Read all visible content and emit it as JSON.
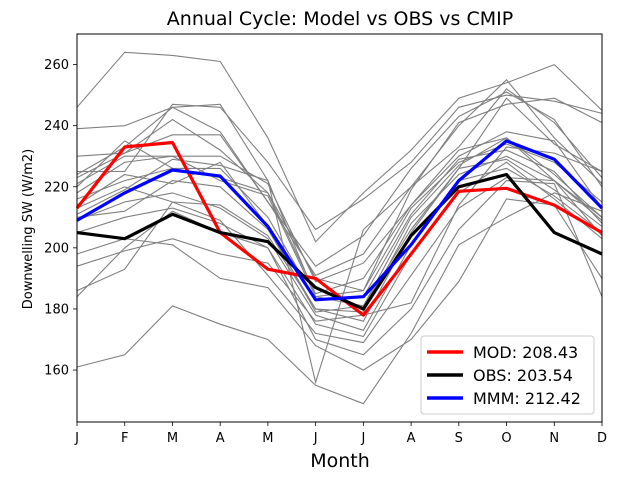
{
  "chart_data": {
    "type": "line",
    "title": "Annual Cycle: Model vs OBS vs CMIP",
    "xlabel": "Month",
    "ylabel": "Downwelling SW (W/m2)",
    "categories": [
      "J",
      "F",
      "M",
      "A",
      "M",
      "J",
      "J",
      "A",
      "S",
      "O",
      "N",
      "D"
    ],
    "ylim": [
      143,
      270
    ],
    "yticks": [
      160,
      180,
      200,
      220,
      240,
      260
    ],
    "legend_position": "lower-right",
    "series": [
      {
        "name": "MOD",
        "label": "MOD: 208.43",
        "color": "#ff0000",
        "values": [
          213,
          233,
          234.5,
          205,
          193,
          190,
          178,
          198,
          218.5,
          219.5,
          214,
          205
        ]
      },
      {
        "name": "OBS",
        "label": "OBS: 203.54",
        "color": "#000000",
        "values": [
          205,
          203,
          211,
          205,
          202,
          187,
          180,
          204,
          220,
          224,
          205,
          198
        ]
      },
      {
        "name": "MMM",
        "label": "MMM: 212.42",
        "color": "#0000ff",
        "values": [
          209,
          218,
          225.5,
          223.5,
          207,
          183,
          184,
          201,
          222,
          235,
          229,
          213
        ]
      }
    ],
    "cmip_models": {
      "name": "CMIP models",
      "color": "#808080",
      "series": [
        [
          246,
          264,
          263,
          261,
          236,
          202,
          218,
          232,
          249,
          254,
          260,
          245
        ],
        [
          239,
          240,
          246,
          247,
          222,
          156,
          206,
          220,
          240,
          255,
          236,
          221
        ],
        [
          225,
          225,
          247,
          246,
          228,
          206,
          216,
          228,
          246,
          250,
          248,
          244
        ],
        [
          224,
          233,
          246,
          238,
          215,
          194,
          204,
          226,
          243,
          251,
          242,
          220
        ],
        [
          223,
          231,
          237,
          237,
          215,
          191,
          198,
          220,
          233,
          252,
          241,
          223
        ],
        [
          221,
          230,
          230,
          230,
          221,
          189,
          195,
          214,
          230,
          238,
          235,
          213
        ],
        [
          220,
          235,
          226,
          223,
          218,
          185,
          190,
          214,
          232,
          236,
          224,
          210
        ],
        [
          218,
          228,
          230,
          222,
          217,
          184,
          186,
          213,
          228,
          234,
          228,
          215
        ],
        [
          216,
          222,
          226,
          226,
          210,
          183,
          184,
          211,
          229,
          232,
          225,
          208
        ],
        [
          214,
          224,
          221,
          228,
          207,
          179,
          181,
          210,
          227,
          236,
          222,
          209
        ],
        [
          213,
          220,
          215,
          214,
          204,
          180,
          179,
          208,
          224,
          230,
          222,
          210
        ],
        [
          210,
          212,
          222,
          220,
          206,
          180,
          176,
          205,
          226,
          229,
          219,
          207
        ],
        [
          209,
          215,
          218,
          213,
          203,
          178,
          173,
          201,
          222,
          226,
          217,
          205
        ],
        [
          205,
          210,
          213,
          208,
          200,
          175,
          171,
          198,
          218,
          228,
          216,
          203
        ],
        [
          198,
          203,
          201,
          190,
          187,
          168,
          160,
          170,
          189,
          216,
          214,
          190
        ],
        [
          194,
          199,
          203,
          198,
          195,
          176,
          178,
          182,
          214,
          233,
          231,
          225
        ],
        [
          186,
          193,
          215,
          209,
          191,
          172,
          169,
          191,
          213,
          223,
          222,
          204
        ],
        [
          184,
          200,
          212,
          205,
          200,
          170,
          165,
          180,
          206,
          222,
          221,
          184
        ],
        [
          161,
          165,
          181,
          175,
          170,
          155,
          149,
          172,
          201,
          210,
          218,
          212
        ],
        [
          230,
          231,
          242,
          232,
          218,
          190,
          186,
          219,
          241,
          247,
          249,
          241
        ],
        [
          211,
          219,
          229,
          227,
          222,
          184,
          181,
          206,
          226,
          249,
          234,
          225
        ]
      ]
    }
  }
}
